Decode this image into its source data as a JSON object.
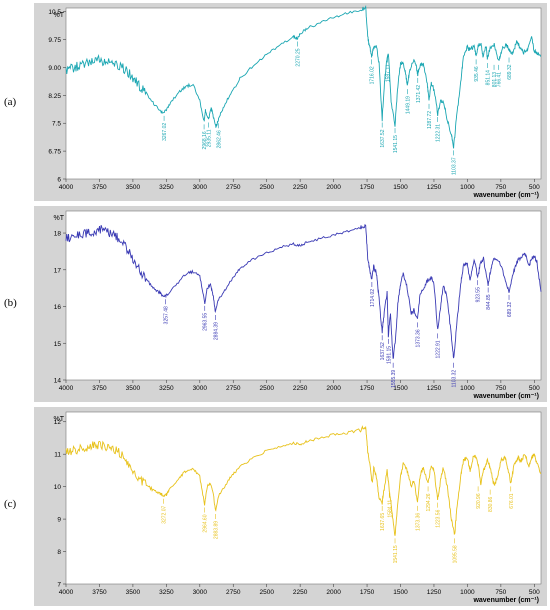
{
  "panel_labels": [
    "(a)",
    "(b)",
    "(c)"
  ],
  "chart_data": [
    {
      "type": "line",
      "panel": "(a)",
      "color": "#1aa6b2",
      "xlabel": "wavenumber (cm⁻¹)",
      "ylabel": "%T",
      "xlim": [
        4000,
        450
      ],
      "ylim": [
        6.0,
        10.6
      ],
      "x_ticks": [
        4000,
        3750,
        3500,
        3250,
        3000,
        2750,
        2500,
        2250,
        2000,
        1750,
        1500,
        1250,
        1000,
        750,
        500
      ],
      "y_ticks": [
        {
          "value": 6.0,
          "label": "6"
        },
        {
          "value": 6.75,
          "label": "6.75"
        },
        {
          "value": 7.5,
          "label": "7.5"
        },
        {
          "value": 8.25,
          "label": "8.25"
        },
        {
          "value": 9.0,
          "label": "9.00"
        },
        {
          "value": 9.75,
          "label": "9.75"
        },
        {
          "value": 10.5,
          "label": "10.5"
        }
      ],
      "x": [
        4000,
        3950,
        3900,
        3850,
        3800,
        3750,
        3700,
        3650,
        3600,
        3550,
        3500,
        3450,
        3400,
        3350,
        3300,
        3280,
        3250,
        3220,
        3150,
        3100,
        3050,
        3000,
        2968,
        2958,
        2935,
        2915,
        2900,
        2880,
        2862,
        2840,
        2800,
        2750,
        2700,
        2600,
        2500,
        2400,
        2300,
        2270,
        2250,
        2200,
        2100,
        2000,
        1900,
        1800,
        1760,
        1745,
        1730,
        1716,
        1700,
        1680,
        1660,
        1637,
        1620,
        1600,
        1590,
        1570,
        1541,
        1520,
        1500,
        1480,
        1460,
        1449,
        1430,
        1400,
        1380,
        1371,
        1355,
        1330,
        1300,
        1287,
        1270,
        1250,
        1222,
        1200,
        1180,
        1150,
        1120,
        1103,
        1080,
        1050,
        1030,
        1000,
        980,
        950,
        935,
        920,
        900,
        884,
        860,
        851,
        830,
        800,
        766,
        740,
        710,
        690,
        670,
        650,
        630,
        610,
        580,
        550,
        520,
        500,
        480,
        450
      ],
      "y": [
        8.92,
        8.98,
        9.05,
        9.1,
        9.15,
        9.2,
        9.16,
        9.1,
        9.05,
        8.92,
        8.72,
        8.5,
        8.3,
        8.05,
        7.85,
        7.78,
        7.85,
        8.05,
        8.35,
        8.5,
        8.55,
        8.1,
        7.55,
        7.85,
        7.6,
        7.9,
        7.7,
        7.4,
        7.58,
        7.8,
        8.1,
        8.4,
        8.7,
        9.05,
        9.35,
        9.6,
        9.82,
        9.78,
        9.9,
        10.05,
        10.2,
        10.35,
        10.45,
        10.55,
        10.62,
        9.8,
        9.55,
        9.3,
        9.55,
        9.6,
        9.1,
        7.6,
        8.6,
        9.3,
        9.35,
        8.1,
        7.45,
        8.5,
        9.1,
        9.15,
        8.8,
        8.5,
        8.95,
        9.2,
        9.0,
        8.8,
        9.05,
        9.1,
        8.55,
        8.1,
        8.6,
        8.4,
        7.75,
        8.1,
        8.1,
        7.6,
        7.2,
        6.85,
        7.7,
        8.6,
        9.3,
        9.55,
        9.45,
        9.6,
        9.3,
        9.6,
        9.65,
        9.3,
        9.6,
        9.2,
        9.55,
        9.6,
        9.15,
        9.5,
        9.62,
        9.5,
        9.35,
        9.5,
        9.7,
        9.55,
        9.4,
        9.5,
        9.8,
        9.45,
        9.4,
        9.3
      ],
      "annotations": [
        {
          "x": 3267,
          "y": 7.78,
          "text": "3267.02"
        },
        {
          "x": 2968,
          "y": 7.55,
          "text": "2968.16"
        },
        {
          "x": 2935,
          "y": 7.6,
          "text": "2935.11"
        },
        {
          "x": 2862,
          "y": 7.58,
          "text": "2862.46"
        },
        {
          "x": 2270,
          "y": 9.78,
          "text": "2270.25"
        },
        {
          "x": 1716,
          "y": 9.3,
          "text": "1716.02"
        },
        {
          "x": 1637,
          "y": 7.6,
          "text": "1637.52"
        },
        {
          "x": 1597,
          "y": 9.35,
          "text": "1597.11"
        },
        {
          "x": 1541,
          "y": 7.45,
          "text": "1541.15"
        },
        {
          "x": 1449,
          "y": 8.5,
          "text": "1449.19"
        },
        {
          "x": 1371,
          "y": 8.8,
          "text": "1371.42"
        },
        {
          "x": 1287,
          "y": 8.1,
          "text": "1287.72"
        },
        {
          "x": 1222,
          "y": 7.75,
          "text": "1222.31"
        },
        {
          "x": 1103,
          "y": 6.85,
          "text": "1103.37"
        },
        {
          "x": 935,
          "y": 9.3,
          "text": "935.46"
        },
        {
          "x": 851,
          "y": 9.2,
          "text": "851.14"
        },
        {
          "x": 801,
          "y": 9.15,
          "text": "801.13"
        },
        {
          "x": 766,
          "y": 9.15,
          "text": "766.41"
        },
        {
          "x": 689,
          "y": 9.35,
          "text": "689.32"
        }
      ]
    },
    {
      "type": "line",
      "panel": "(b)",
      "color": "#3a3ab4",
      "xlabel": "wavenumber (cm⁻¹)",
      "ylabel": "%T",
      "xlim": [
        4000,
        450
      ],
      "ylim": [
        14,
        18.6
      ],
      "x_ticks": [
        4000,
        3750,
        3500,
        3250,
        3000,
        2750,
        2500,
        2250,
        2000,
        1750,
        1500,
        1250,
        1000,
        750,
        500
      ],
      "y_ticks": [
        {
          "value": 14,
          "label": "14"
        },
        {
          "value": 15,
          "label": "15"
        },
        {
          "value": 16,
          "label": "16"
        },
        {
          "value": 17,
          "label": "17"
        },
        {
          "value": 18,
          "label": "18"
        }
      ],
      "x": [
        4000,
        3950,
        3900,
        3850,
        3800,
        3750,
        3700,
        3650,
        3600,
        3550,
        3500,
        3450,
        3400,
        3350,
        3300,
        3280,
        3257,
        3230,
        3150,
        3100,
        3050,
        3000,
        2963,
        2945,
        2920,
        2900,
        2884,
        2860,
        2800,
        2750,
        2700,
        2600,
        2500,
        2400,
        2300,
        2250,
        2200,
        2100,
        2000,
        1900,
        1800,
        1760,
        1745,
        1730,
        1714,
        1700,
        1680,
        1660,
        1637,
        1620,
        1600,
        1591,
        1575,
        1555,
        1535,
        1520,
        1500,
        1480,
        1450,
        1420,
        1400,
        1373,
        1355,
        1330,
        1300,
        1270,
        1250,
        1222,
        1200,
        1180,
        1150,
        1120,
        1103,
        1080,
        1050,
        1030,
        1000,
        980,
        950,
        923,
        900,
        880,
        845,
        820,
        800,
        760,
        720,
        689,
        660,
        630,
        600,
        570,
        540,
        520,
        500,
        480,
        450
      ],
      "y": [
        17.85,
        17.9,
        17.95,
        18.0,
        18.05,
        18.1,
        18.05,
        17.95,
        17.85,
        17.6,
        17.3,
        17.0,
        16.75,
        16.5,
        16.38,
        16.3,
        16.28,
        16.38,
        16.7,
        16.9,
        16.95,
        16.85,
        16.1,
        16.5,
        16.6,
        16.3,
        15.85,
        16.2,
        16.5,
        16.8,
        17.05,
        17.3,
        17.45,
        17.6,
        17.7,
        17.65,
        17.75,
        17.85,
        17.95,
        18.05,
        18.15,
        18.2,
        17.3,
        17.0,
        16.75,
        17.1,
        16.9,
        16.2,
        15.3,
        15.9,
        16.4,
        15.2,
        15.8,
        14.55,
        15.2,
        16.1,
        16.6,
        16.9,
        16.5,
        15.8,
        15.9,
        15.65,
        16.3,
        16.5,
        16.7,
        16.8,
        16.6,
        15.35,
        16.0,
        16.6,
        16.2,
        15.2,
        14.55,
        15.5,
        16.6,
        17.1,
        17.15,
        16.7,
        17.3,
        16.8,
        17.2,
        17.3,
        16.6,
        17.1,
        17.35,
        17.2,
        16.8,
        16.4,
        16.9,
        17.2,
        17.35,
        17.45,
        17.1,
        17.3,
        17.4,
        17.2,
        16.4
      ],
      "annotations": [
        {
          "x": 3257,
          "y": 16.28,
          "text": "3257.48"
        },
        {
          "x": 2963,
          "y": 16.1,
          "text": "2963.55"
        },
        {
          "x": 2884,
          "y": 15.85,
          "text": "2884.39"
        },
        {
          "x": 1714,
          "y": 16.75,
          "text": "1714.02"
        },
        {
          "x": 1637,
          "y": 15.3,
          "text": "1637.52"
        },
        {
          "x": 1591,
          "y": 15.2,
          "text": "1591.15"
        },
        {
          "x": 1555,
          "y": 14.55,
          "text": "1555.39"
        },
        {
          "x": 1373,
          "y": 15.65,
          "text": "1373.36"
        },
        {
          "x": 1222,
          "y": 15.35,
          "text": "1222.91"
        },
        {
          "x": 1103,
          "y": 14.55,
          "text": "1103.32"
        },
        {
          "x": 923,
          "y": 16.8,
          "text": "923.55"
        },
        {
          "x": 845,
          "y": 16.6,
          "text": "844.85"
        },
        {
          "x": 689,
          "y": 16.4,
          "text": "689.32"
        }
      ]
    },
    {
      "type": "line",
      "panel": "(c)",
      "color": "#e8c21c",
      "xlabel": "wavenumber (cm⁻¹)",
      "ylabel": "%T",
      "xlim": [
        4000,
        450
      ],
      "ylim": [
        7,
        12.3
      ],
      "x_ticks": [
        4000,
        3750,
        3500,
        3250,
        3000,
        2750,
        2500,
        2250,
        2000,
        1750,
        1500,
        1250,
        1000,
        750,
        500
      ],
      "y_ticks": [
        {
          "value": 7,
          "label": "7"
        },
        {
          "value": 8,
          "label": "8"
        },
        {
          "value": 9,
          "label": "9"
        },
        {
          "value": 10,
          "label": "10"
        },
        {
          "value": 11,
          "label": "11"
        },
        {
          "value": 12,
          "label": "12"
        }
      ],
      "x": [
        4000,
        3950,
        3900,
        3850,
        3800,
        3750,
        3700,
        3650,
        3600,
        3550,
        3500,
        3450,
        3400,
        3350,
        3300,
        3270,
        3250,
        3230,
        3150,
        3100,
        3050,
        3000,
        2964,
        2945,
        2920,
        2900,
        2883,
        2860,
        2800,
        2750,
        2700,
        2600,
        2500,
        2400,
        2300,
        2250,
        2200,
        2100,
        2000,
        1900,
        1800,
        1760,
        1745,
        1730,
        1711,
        1700,
        1680,
        1660,
        1637,
        1620,
        1600,
        1584,
        1565,
        1541,
        1520,
        1500,
        1480,
        1450,
        1420,
        1400,
        1373,
        1355,
        1330,
        1294,
        1270,
        1250,
        1223,
        1200,
        1180,
        1150,
        1120,
        1095,
        1080,
        1050,
        1030,
        1000,
        980,
        950,
        920,
        900,
        880,
        850,
        830,
        800,
        770,
        750,
        720,
        700,
        676,
        650,
        620,
        600,
        570,
        540,
        520,
        500,
        480,
        450
      ],
      "y": [
        11.05,
        11.1,
        11.15,
        11.2,
        11.25,
        11.3,
        11.25,
        11.15,
        11.05,
        10.8,
        10.5,
        10.25,
        10.05,
        9.9,
        9.8,
        9.72,
        9.75,
        9.9,
        10.3,
        10.5,
        10.55,
        10.3,
        9.45,
        10.0,
        10.1,
        9.8,
        9.25,
        9.7,
        10.1,
        10.4,
        10.6,
        10.9,
        11.1,
        11.25,
        11.35,
        11.3,
        11.4,
        11.5,
        11.6,
        11.65,
        11.75,
        11.85,
        11.1,
        10.7,
        10.1,
        10.6,
        10.3,
        9.6,
        9.5,
        10.0,
        10.5,
        9.9,
        9.3,
        8.5,
        9.5,
        10.3,
        10.7,
        10.5,
        10.0,
        10.2,
        9.5,
        10.3,
        10.6,
        10.1,
        10.7,
        10.5,
        9.6,
        10.2,
        10.6,
        10.0,
        9.0,
        8.5,
        9.3,
        10.3,
        10.8,
        10.9,
        10.5,
        11.0,
        10.7,
        10.1,
        10.5,
        10.8,
        10.6,
        10.0,
        10.4,
        10.8,
        10.9,
        10.6,
        10.1,
        10.7,
        10.9,
        10.8,
        11.0,
        10.6,
        10.9,
        11.0,
        10.7,
        10.4
      ],
      "annotations": [
        {
          "x": 3270,
          "y": 9.72,
          "text": "3272.07"
        },
        {
          "x": 2964,
          "y": 9.45,
          "text": "2964.60"
        },
        {
          "x": 2883,
          "y": 9.25,
          "text": "2883.89"
        },
        {
          "x": 1637,
          "y": 9.5,
          "text": "1637.65"
        },
        {
          "x": 1584,
          "y": 9.9,
          "text": "1584.11"
        },
        {
          "x": 1541,
          "y": 8.5,
          "text": "1541.15"
        },
        {
          "x": 1373,
          "y": 9.5,
          "text": "1373.36"
        },
        {
          "x": 1294,
          "y": 10.1,
          "text": "1294.26"
        },
        {
          "x": 1223,
          "y": 9.6,
          "text": "1223.56"
        },
        {
          "x": 1095,
          "y": 8.5,
          "text": "1095.58"
        },
        {
          "x": 920,
          "y": 10.1,
          "text": "920.96"
        },
        {
          "x": 830,
          "y": 10.0,
          "text": "830.86"
        },
        {
          "x": 676,
          "y": 10.1,
          "text": "676.01"
        }
      ]
    }
  ]
}
